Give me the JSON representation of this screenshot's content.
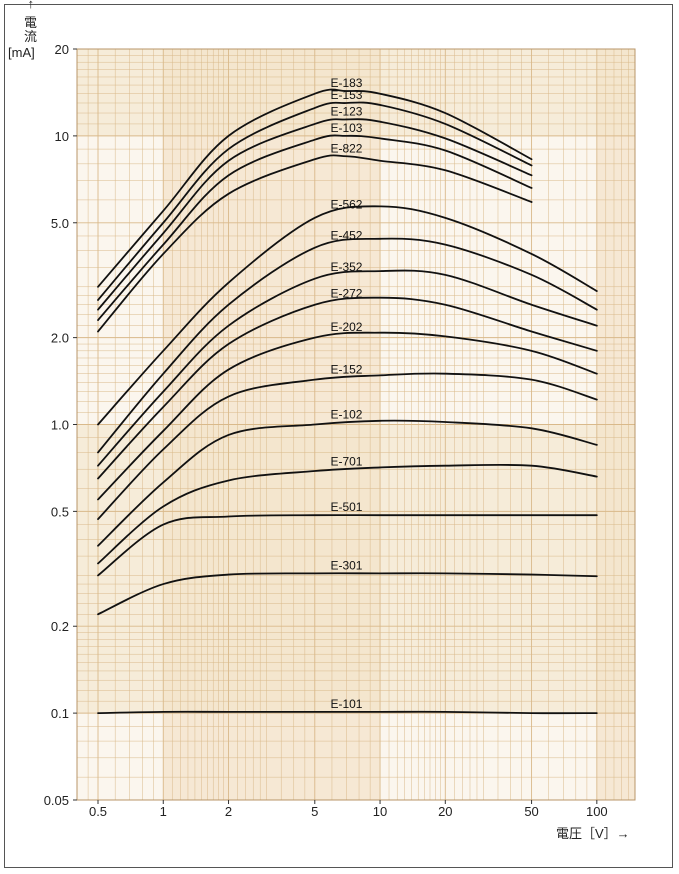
{
  "chart_data": {
    "type": "line",
    "title": "",
    "ylabel": "電流",
    "yunit": "[mA]",
    "ylabel_arrow": "→",
    "xlabel": "電圧［V］→",
    "x_scale": "log",
    "y_scale": "log",
    "xlim": [
      0.4,
      150
    ],
    "ylim": [
      0.05,
      20
    ],
    "grid": true,
    "grid_color": "#d9b98a",
    "band_color": "#f3e3c9",
    "line_color": "#111111",
    "xticks": [
      0.5,
      1,
      2,
      5,
      10,
      20,
      50,
      100
    ],
    "xtick_labels": [
      "0.5",
      "1",
      "2",
      "5",
      "10",
      "20",
      "50",
      "100"
    ],
    "yticks": [
      0.05,
      0.1,
      0.2,
      0.5,
      1.0,
      2.0,
      5.0,
      10,
      20
    ],
    "ytick_labels": [
      "0.05",
      "0.1",
      "0.2",
      "0.5",
      "1.0",
      "2.0",
      "5.0",
      "10",
      "20"
    ],
    "series": [
      {
        "name": "E-183",
        "label_x": 7.0,
        "x": [
          0.5,
          1,
          2,
          5,
          7,
          10,
          20,
          50
        ],
        "y": [
          3.0,
          5.5,
          10.0,
          14.0,
          14.3,
          14.0,
          12.0,
          8.3
        ]
      },
      {
        "name": "E-153",
        "label_x": 7.0,
        "x": [
          0.5,
          1,
          2,
          5,
          7,
          10,
          20,
          50
        ],
        "y": [
          2.7,
          5.0,
          9.0,
          12.5,
          13.0,
          12.8,
          11.0,
          7.9
        ]
      },
      {
        "name": "E-123",
        "label_x": 7.0,
        "x": [
          0.5,
          1,
          2,
          5,
          7,
          10,
          20,
          50
        ],
        "y": [
          2.5,
          4.6,
          8.2,
          11.0,
          11.4,
          11.2,
          9.8,
          7.3
        ]
      },
      {
        "name": "E-103",
        "label_x": 7.0,
        "x": [
          0.5,
          1,
          2,
          5,
          7,
          10,
          20,
          50
        ],
        "y": [
          2.3,
          4.2,
          7.3,
          9.7,
          10.0,
          9.8,
          8.9,
          6.6
        ]
      },
      {
        "name": "E-822",
        "label_x": 7.0,
        "x": [
          0.5,
          1,
          2,
          5,
          7,
          10,
          20,
          50
        ],
        "y": [
          2.1,
          3.9,
          6.3,
          8.3,
          8.5,
          8.2,
          7.6,
          5.9
        ]
      },
      {
        "name": "E-562",
        "label_x": 7.0,
        "x": [
          0.5,
          1,
          2,
          5,
          10,
          20,
          50,
          100
        ],
        "y": [
          1.0,
          1.8,
          3.1,
          5.2,
          5.7,
          5.2,
          3.9,
          2.9
        ]
      },
      {
        "name": "E-452",
        "label_x": 7.0,
        "x": [
          0.5,
          1,
          2,
          5,
          10,
          20,
          50,
          100
        ],
        "y": [
          0.8,
          1.5,
          2.6,
          4.1,
          4.4,
          4.2,
          3.3,
          2.5
        ]
      },
      {
        "name": "E-352",
        "label_x": 7.0,
        "x": [
          0.5,
          1,
          2,
          5,
          10,
          20,
          50,
          100
        ],
        "y": [
          0.72,
          1.3,
          2.2,
          3.2,
          3.4,
          3.3,
          2.6,
          2.2
        ]
      },
      {
        "name": "E-272",
        "label_x": 7.0,
        "x": [
          0.5,
          1,
          2,
          5,
          10,
          20,
          50,
          100
        ],
        "y": [
          0.65,
          1.15,
          1.9,
          2.6,
          2.75,
          2.6,
          2.1,
          1.8
        ]
      },
      {
        "name": "E-202",
        "label_x": 7.0,
        "x": [
          0.5,
          1,
          2,
          5,
          10,
          20,
          50,
          100
        ],
        "y": [
          0.55,
          0.95,
          1.55,
          2.0,
          2.08,
          2.02,
          1.8,
          1.5
        ]
      },
      {
        "name": "E-152",
        "label_x": 7.0,
        "x": [
          0.5,
          1,
          2,
          5,
          10,
          20,
          50,
          100
        ],
        "y": [
          0.47,
          0.82,
          1.25,
          1.43,
          1.48,
          1.5,
          1.43,
          1.22
        ]
      },
      {
        "name": "E-102",
        "label_x": 7.0,
        "x": [
          0.5,
          1,
          2,
          5,
          10,
          20,
          50,
          100
        ],
        "y": [
          0.38,
          0.63,
          0.92,
          1.0,
          1.03,
          1.02,
          0.97,
          0.85
        ]
      },
      {
        "name": "E-701",
        "label_x": 7.0,
        "x": [
          0.5,
          1,
          2,
          5,
          10,
          20,
          50,
          100
        ],
        "y": [
          0.33,
          0.52,
          0.64,
          0.69,
          0.71,
          0.72,
          0.72,
          0.66
        ]
      },
      {
        "name": "E-501",
        "label_x": 7.0,
        "x": [
          0.5,
          1,
          2,
          5,
          10,
          20,
          50,
          100
        ],
        "y": [
          0.3,
          0.45,
          0.48,
          0.485,
          0.485,
          0.485,
          0.485,
          0.485
        ]
      },
      {
        "name": "E-301",
        "label_x": 7.0,
        "x": [
          0.5,
          1,
          2,
          5,
          10,
          20,
          50,
          100
        ],
        "y": [
          0.22,
          0.28,
          0.302,
          0.305,
          0.305,
          0.305,
          0.302,
          0.298
        ]
      },
      {
        "name": "E-101",
        "label_x": 7.0,
        "x": [
          0.5,
          1,
          2,
          5,
          10,
          20,
          50,
          100
        ],
        "y": [
          0.1,
          0.101,
          0.101,
          0.101,
          0.101,
          0.101,
          0.1,
          0.1
        ]
      }
    ]
  }
}
